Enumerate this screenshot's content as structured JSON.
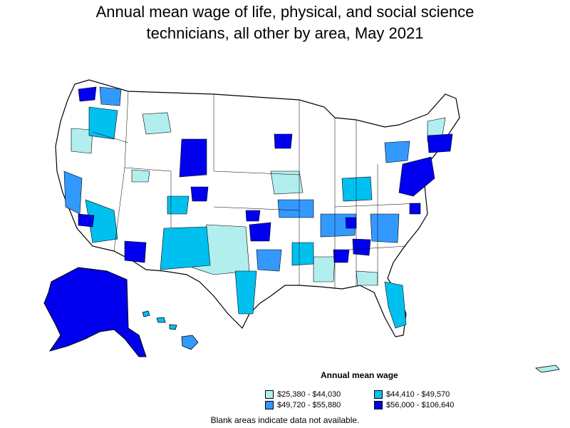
{
  "title_line1": "Annual mean wage of life, physical, and social science",
  "title_line2": "technicians, all other by area, May 2021",
  "legend": {
    "title": "Annual mean wage",
    "items": [
      {
        "label": "$25,380 - $44,030",
        "color": "#b2eeee"
      },
      {
        "label": "$44,410 - $49,570",
        "color": "#00c0f0"
      },
      {
        "label": "$49,720 - $55,880",
        "color": "#3399ff"
      },
      {
        "label": "$56,000 - $106,640",
        "color": "#0000ee"
      }
    ]
  },
  "note": "Blank areas indicate data not available."
}
